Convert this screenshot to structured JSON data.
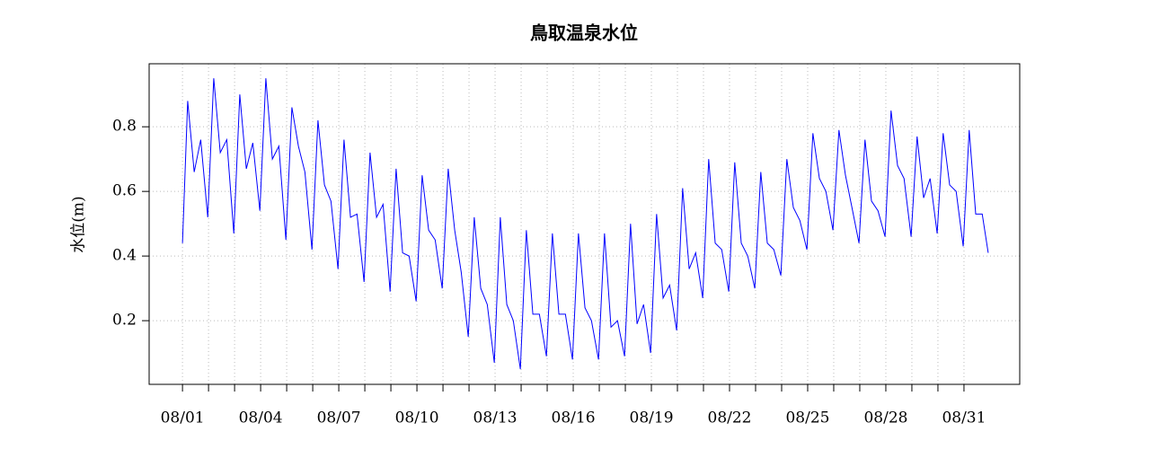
{
  "chart_data": {
    "type": "line",
    "title": "鳥取温泉水位",
    "y_label": "水位(m)",
    "series": [
      {
        "name": "水位",
        "color": "#0000ff",
        "x": [
          0,
          0.2,
          0.45,
          0.7,
          0.97,
          1.2,
          1.45,
          1.7,
          1.97,
          2.2,
          2.45,
          2.7,
          2.97,
          3.2,
          3.45,
          3.7,
          3.97,
          4.2,
          4.45,
          4.7,
          4.97,
          5.2,
          5.45,
          5.7,
          5.97,
          6.2,
          6.45,
          6.7,
          6.97,
          7.2,
          7.45,
          7.7,
          7.97,
          8.2,
          8.45,
          8.7,
          8.97,
          9.2,
          9.45,
          9.7,
          9.97,
          10.2,
          10.45,
          10.7,
          10.97,
          11.2,
          11.45,
          11.7,
          11.97,
          12.2,
          12.45,
          12.7,
          12.97,
          13.2,
          13.45,
          13.7,
          13.97,
          14.2,
          14.45,
          14.7,
          14.97,
          15.2,
          15.45,
          15.7,
          15.97,
          16.2,
          16.45,
          16.7,
          16.97,
          17.2,
          17.45,
          17.7,
          17.97,
          18.2,
          18.45,
          18.7,
          18.97,
          19.2,
          19.45,
          19.7,
          19.97,
          20.2,
          20.45,
          20.7,
          20.97,
          21.2,
          21.45,
          21.7,
          21.97,
          22.2,
          22.45,
          22.7,
          22.97,
          23.2,
          23.45,
          23.7,
          23.97,
          24.2,
          24.45,
          24.7,
          24.97,
          25.2,
          25.45,
          25.7,
          25.97,
          26.2,
          26.45,
          26.7,
          26.97,
          27.2,
          27.45,
          27.7,
          27.97,
          28.2,
          28.45,
          28.7,
          28.97,
          29.2,
          29.45,
          29.7,
          29.97,
          30.2,
          30.45,
          30.7,
          30.93
        ],
        "values": [
          0.44,
          0.88,
          0.66,
          0.76,
          0.52,
          0.95,
          0.72,
          0.76,
          0.47,
          0.9,
          0.67,
          0.75,
          0.54,
          0.95,
          0.7,
          0.74,
          0.45,
          0.86,
          0.74,
          0.66,
          0.42,
          0.82,
          0.62,
          0.57,
          0.36,
          0.76,
          0.52,
          0.53,
          0.32,
          0.72,
          0.52,
          0.56,
          0.29,
          0.67,
          0.41,
          0.4,
          0.26,
          0.65,
          0.48,
          0.45,
          0.3,
          0.67,
          0.48,
          0.35,
          0.15,
          0.52,
          0.3,
          0.25,
          0.07,
          0.52,
          0.25,
          0.2,
          0.05,
          0.48,
          0.22,
          0.22,
          0.09,
          0.47,
          0.22,
          0.22,
          0.08,
          0.47,
          0.24,
          0.2,
          0.08,
          0.47,
          0.18,
          0.2,
          0.09,
          0.5,
          0.19,
          0.25,
          0.1,
          0.53,
          0.27,
          0.31,
          0.17,
          0.61,
          0.36,
          0.41,
          0.27,
          0.7,
          0.44,
          0.42,
          0.29,
          0.69,
          0.44,
          0.4,
          0.3,
          0.66,
          0.44,
          0.42,
          0.34,
          0.7,
          0.55,
          0.51,
          0.42,
          0.78,
          0.64,
          0.6,
          0.48,
          0.79,
          0.65,
          0.55,
          0.44,
          0.76,
          0.57,
          0.54,
          0.46,
          0.85,
          0.68,
          0.64,
          0.46,
          0.77,
          0.58,
          0.64,
          0.47,
          0.78,
          0.62,
          0.6,
          0.43,
          0.79,
          0.53,
          0.53,
          0.41
        ]
      }
    ],
    "xlim": [
      -1.28,
      32.14
    ],
    "xticks": [
      {
        "value": 0,
        "label": "08/01"
      },
      {
        "value": 3,
        "label": "08/04"
      },
      {
        "value": 6,
        "label": "08/07"
      },
      {
        "value": 9,
        "label": "08/10"
      },
      {
        "value": 12,
        "label": "08/13"
      },
      {
        "value": 15,
        "label": "08/16"
      },
      {
        "value": 18,
        "label": "08/19"
      },
      {
        "value": 21,
        "label": "08/22"
      },
      {
        "value": 24,
        "label": "08/25"
      },
      {
        "value": 27,
        "label": "08/28"
      },
      {
        "value": 30,
        "label": "08/31"
      }
    ],
    "xminor_ticks": [
      0,
      1,
      2,
      3,
      4,
      5,
      6,
      7,
      8,
      9,
      10,
      11,
      12,
      13,
      14,
      15,
      16,
      17,
      18,
      19,
      20,
      21,
      22,
      23,
      24,
      25,
      26,
      27,
      28,
      29,
      30
    ],
    "ylim": [
      0.003,
      0.995
    ],
    "yticks": [
      0.2,
      0.4,
      0.6,
      0.8
    ],
    "grid": true
  }
}
